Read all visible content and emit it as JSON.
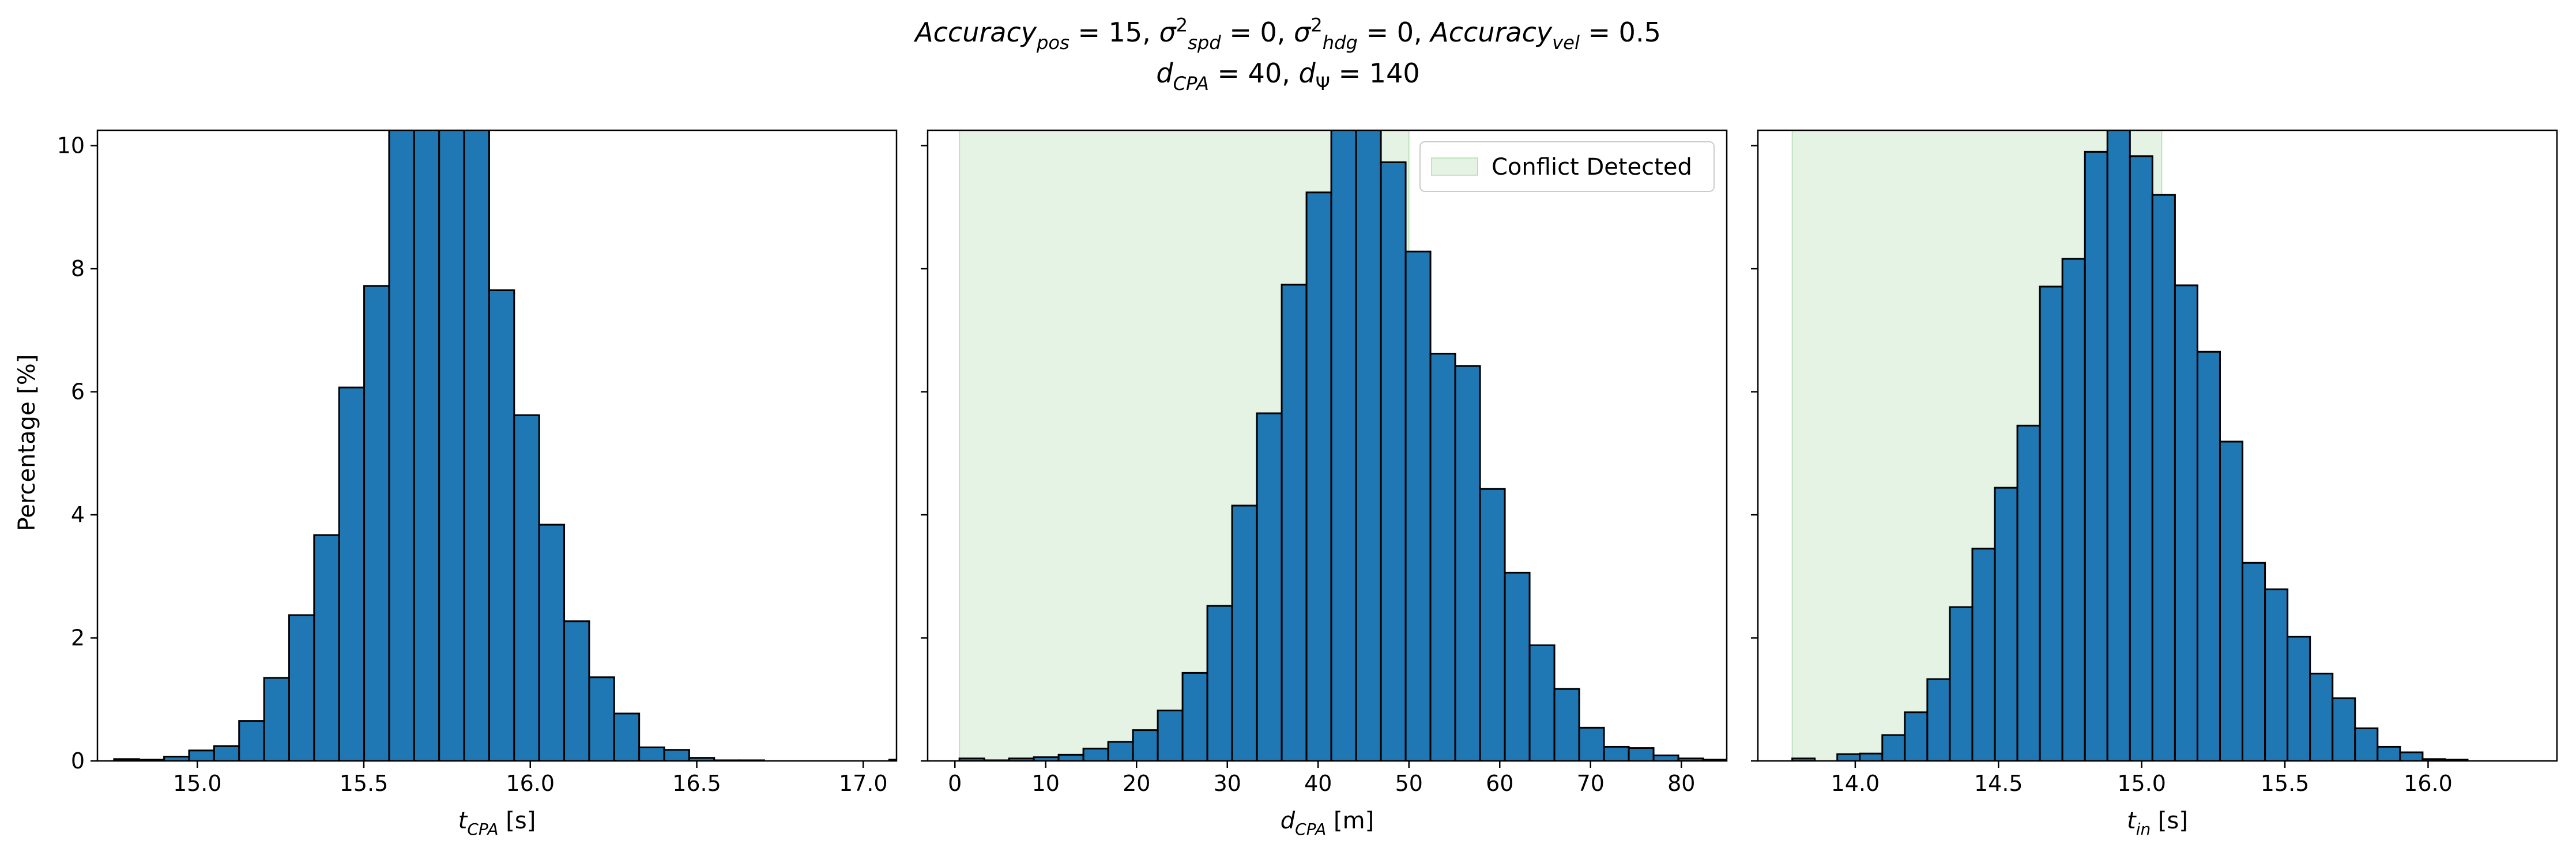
{
  "title": {
    "line1": [
      {
        "t": "Accuracy",
        "it": true
      },
      {
        "t": "pos",
        "it": true,
        "sub": true
      },
      {
        "t": " = 15, "
      },
      {
        "t": "σ",
        "it": true
      },
      {
        "t": "2",
        "sup": true
      },
      {
        "t": "spd",
        "it": true,
        "sub": true
      },
      {
        "t": " = 0, "
      },
      {
        "t": "σ",
        "it": true
      },
      {
        "t": "2",
        "sup": true
      },
      {
        "t": "hdg",
        "it": true,
        "sub": true
      },
      {
        "t": " = 0, "
      },
      {
        "t": "Accuracy",
        "it": true
      },
      {
        "t": "vel",
        "it": true,
        "sub": true
      },
      {
        "t": " = 0.5"
      }
    ],
    "line2": [
      {
        "t": "d",
        "it": true
      },
      {
        "t": "CPA",
        "it": true,
        "sub": true
      },
      {
        "t": " = 40, "
      },
      {
        "t": "d",
        "it": true
      },
      {
        "t": "Ψ",
        "sub": true
      },
      {
        "t": " = 140"
      }
    ]
  },
  "ylabel": "Percentage [%]",
  "colors": {
    "bar": "#1f77b4",
    "bar_edge": "#000000",
    "region": "#2ca02c"
  },
  "chart_data": [
    {
      "type": "bar",
      "xlabel": [
        {
          "t": "t",
          "it": true
        },
        {
          "t": "CPA",
          "it": true,
          "sub": true
        },
        {
          "t": " [s]"
        }
      ],
      "xlim": [
        14.7,
        17.1
      ],
      "ylim": [
        0,
        10.25
      ],
      "xticks": [
        15.0,
        15.5,
        16.0,
        16.5,
        17.0
      ],
      "xtick_labels": [
        "15.0",
        "15.5",
        "16.0",
        "16.5",
        "17.0"
      ],
      "yticks": [
        0,
        2,
        4,
        6,
        8,
        10
      ],
      "ytick_labels": [
        "0",
        "2",
        "4",
        "6",
        "8",
        "10"
      ],
      "bin_start": 14.75,
      "bin_width": 0.0751,
      "values": [
        0.03,
        0.02,
        0.07,
        0.17,
        0.24,
        0.65,
        1.35,
        2.37,
        3.67,
        6.07,
        7.72,
        10.5,
        10.5,
        10.5,
        10.5,
        7.65,
        5.62,
        3.84,
        2.27,
        1.36,
        0.77,
        0.22,
        0.18,
        0.05,
        0.01,
        0.01,
        0.0,
        0.0,
        0.0,
        0.0,
        0.0,
        0.02
      ]
    },
    {
      "type": "bar",
      "xlabel": [
        {
          "t": "d",
          "it": true
        },
        {
          "t": "CPA",
          "it": true,
          "sub": true
        },
        {
          "t": " [m]"
        }
      ],
      "xlim": [
        -3,
        85
      ],
      "ylim": [
        0,
        10.25
      ],
      "xticks": [
        0,
        10,
        20,
        30,
        40,
        50,
        60,
        70,
        80
      ],
      "xtick_labels": [
        "0",
        "10",
        "20",
        "30",
        "40",
        "50",
        "60",
        "70",
        "80"
      ],
      "yticks": [
        0,
        2,
        4,
        6,
        8,
        10
      ],
      "bin_start": 0.5,
      "bin_width": 2.73,
      "values": [
        0.04,
        0.01,
        0.04,
        0.06,
        0.1,
        0.2,
        0.31,
        0.5,
        0.82,
        1.43,
        2.52,
        4.15,
        5.65,
        7.74,
        9.24,
        10.5,
        10.5,
        9.73,
        8.28,
        6.62,
        6.42,
        4.42,
        3.06,
        1.88,
        1.17,
        0.54,
        0.23,
        0.21,
        0.09,
        0.04,
        0.02
      ],
      "region": {
        "x0": 0.5,
        "x1": 50,
        "label": "Conflict Detected",
        "alpha": 0.12
      },
      "legend": "top-right"
    },
    {
      "type": "bar",
      "xlabel": [
        {
          "t": "t",
          "it": true
        },
        {
          "t": "in",
          "it": true,
          "sub": true
        },
        {
          "t": " [s]"
        }
      ],
      "xlim": [
        13.66,
        16.45
      ],
      "ylim": [
        0,
        10.25
      ],
      "xticks": [
        14.0,
        14.5,
        15.0,
        15.5,
        16.0
      ],
      "xtick_labels": [
        "14.0",
        "14.5",
        "15.0",
        "15.5",
        "16.0"
      ],
      "yticks": [
        0,
        2,
        4,
        6,
        8,
        10
      ],
      "bin_start": 13.78,
      "bin_width": 0.0786,
      "values": [
        0.04,
        0.0,
        0.11,
        0.12,
        0.42,
        0.79,
        1.33,
        2.5,
        3.45,
        4.44,
        5.45,
        7.71,
        8.16,
        9.9,
        10.5,
        9.83,
        9.2,
        7.73,
        6.65,
        5.19,
        3.22,
        2.79,
        2.02,
        1.42,
        1.02,
        0.53,
        0.23,
        0.14,
        0.03,
        0.02
      ],
      "region": {
        "x0": 13.78,
        "x1": 15.07,
        "label": "",
        "alpha": 0.12
      }
    }
  ]
}
